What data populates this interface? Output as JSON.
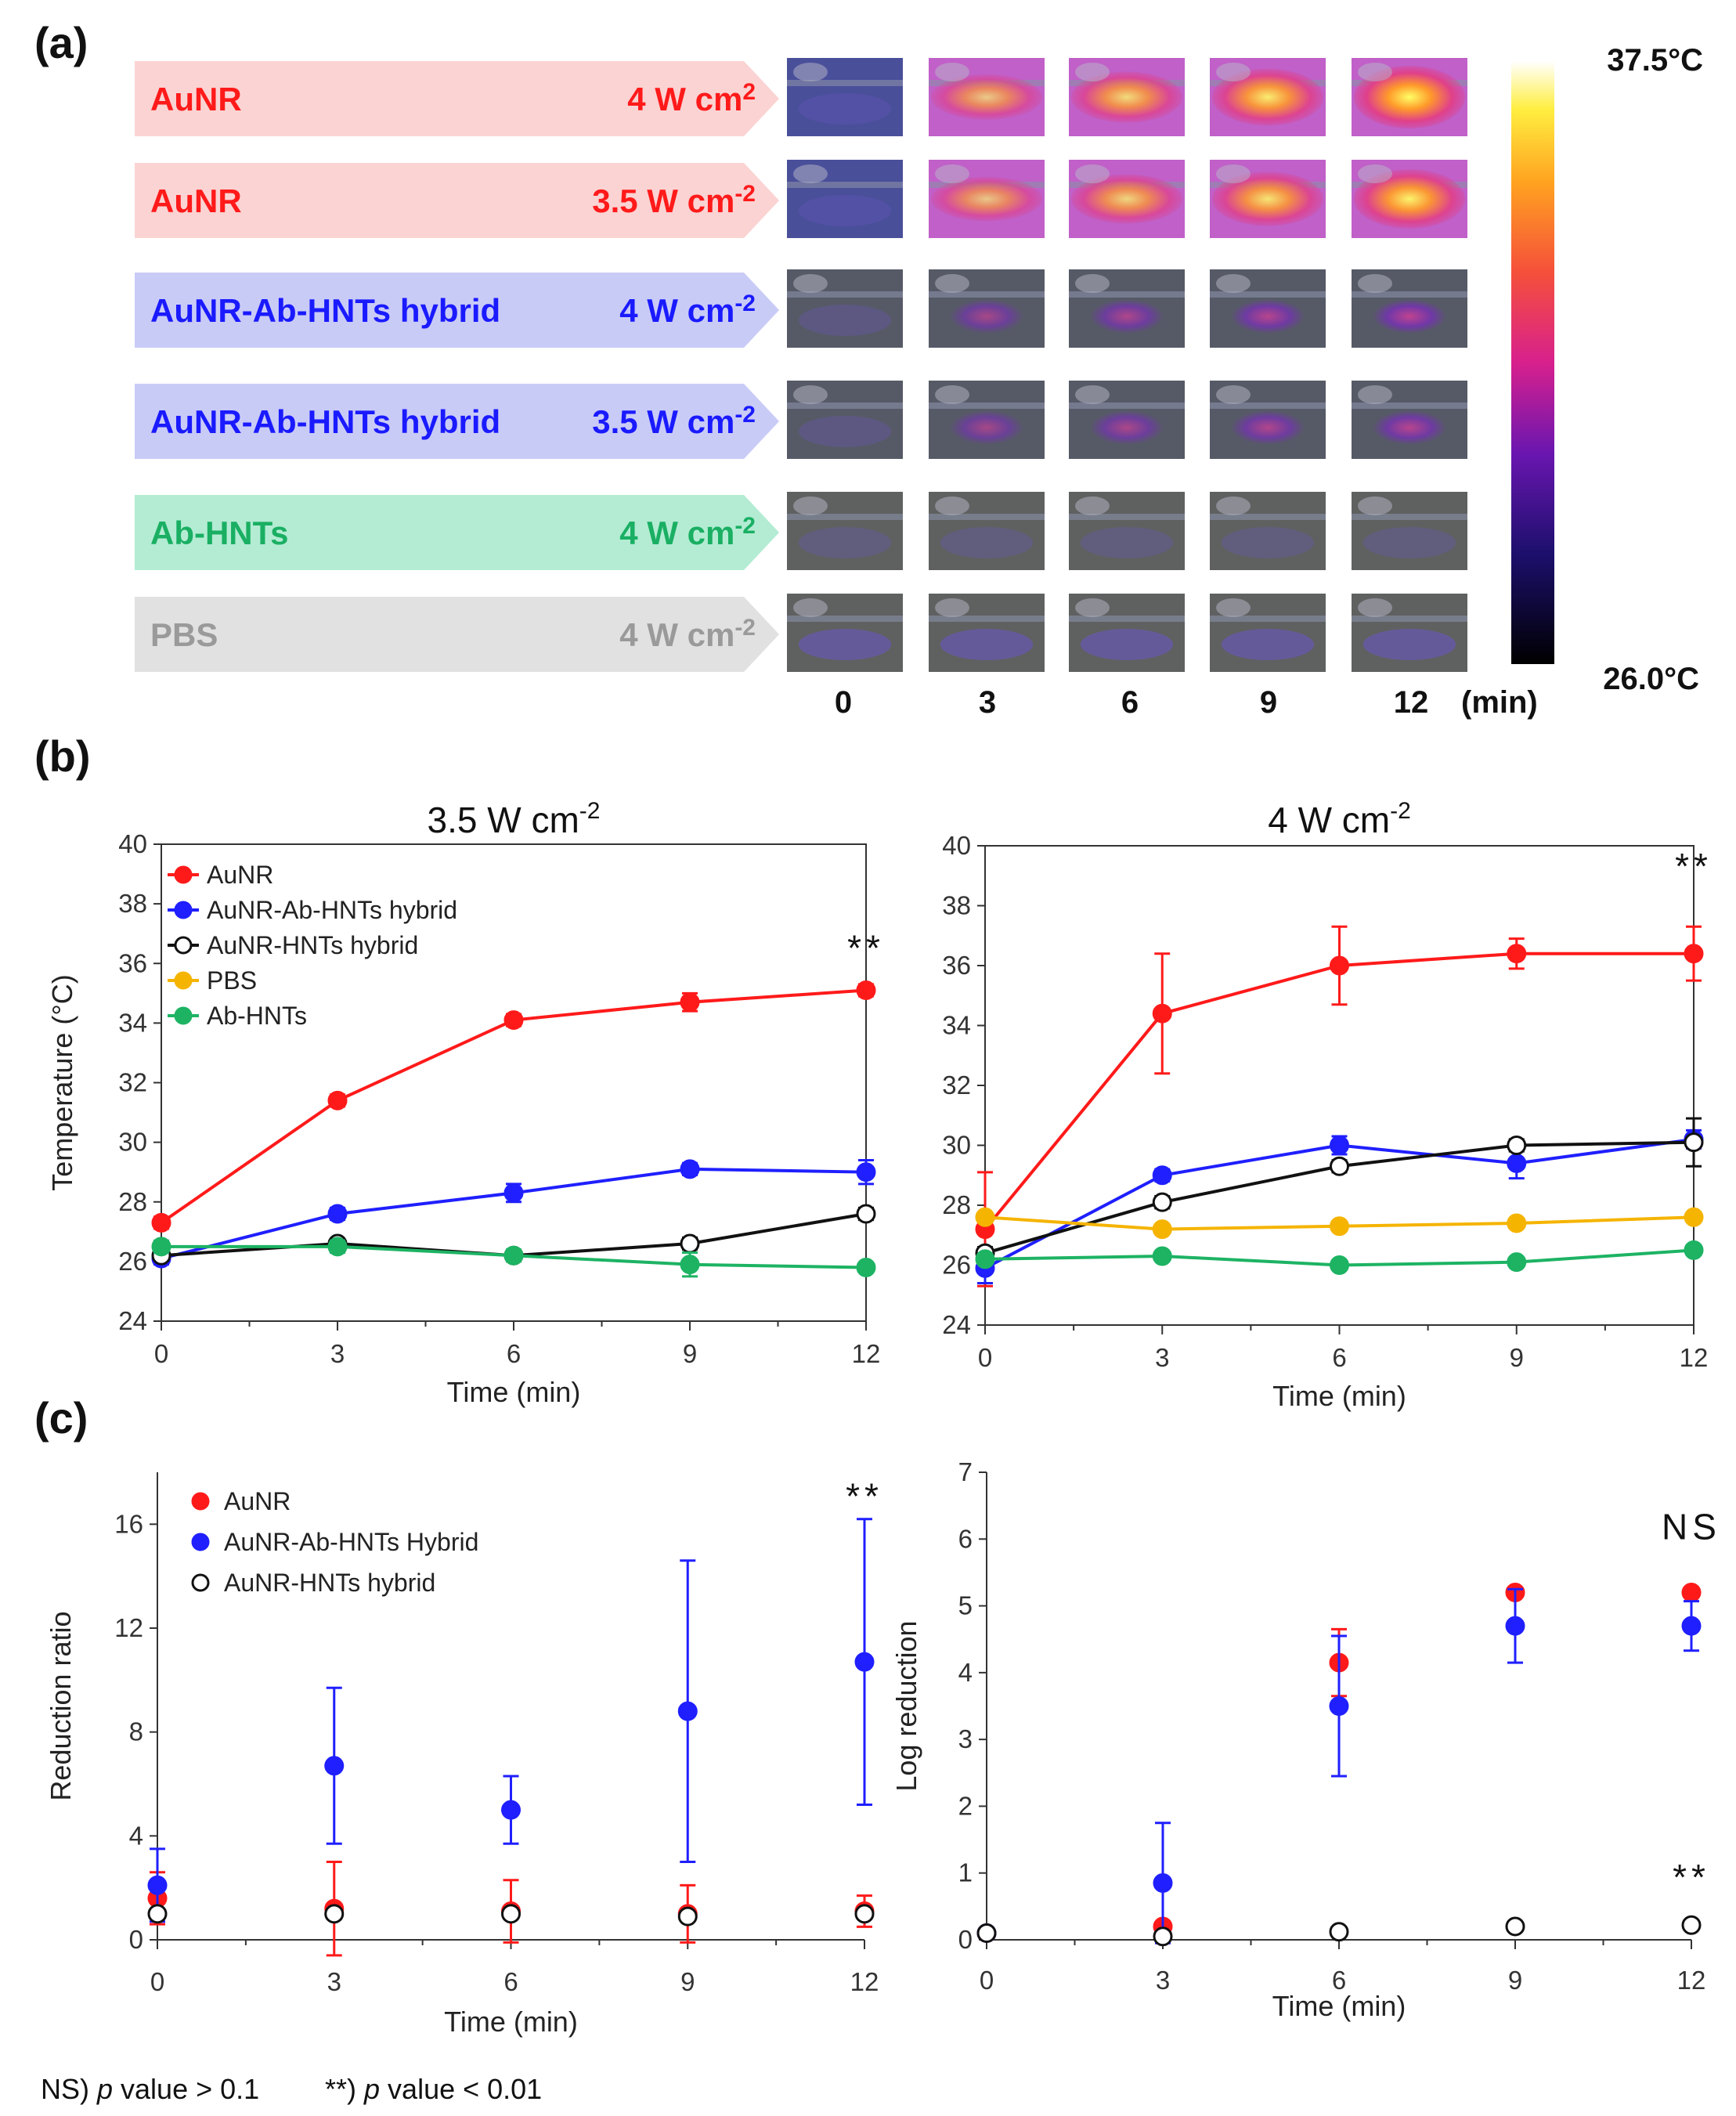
{
  "panel_labels": {
    "a": "(a)",
    "b": "(b)",
    "c": "(c)"
  },
  "panel_a": {
    "rows": [
      {
        "name": "AuNR",
        "power": "4 W cm",
        "sup": "2",
        "color": "#ff1a1a",
        "bg": "#fbd3d3",
        "heat": 1.0
      },
      {
        "name": "AuNR",
        "power": "3.5 W cm",
        "sup": "-2",
        "color": "#ff1a1a",
        "bg": "#fbd3d3",
        "heat": 0.85
      },
      {
        "name": "AuNR-Ab-HNTs hybrid",
        "power": "4 W cm",
        "sup": "-2",
        "color": "#1a1aff",
        "bg": "#c9cbf7",
        "heat": 0.45
      },
      {
        "name": "AuNR-Ab-HNTs hybrid",
        "power": "3.5 W cm",
        "sup": "-2",
        "color": "#1a1aff",
        "bg": "#c9cbf7",
        "heat": 0.35
      },
      {
        "name": "Ab-HNTs",
        "power": "4 W cm",
        "sup": "-2",
        "color": "#1aaf63",
        "bg": "#b3ecd3",
        "heat": 0.1
      },
      {
        "name": "PBS",
        "power": "4 W cm",
        "sup": "-2",
        "color": "#9a9a9a",
        "bg": "#e1e1e1",
        "heat": 0.15
      }
    ],
    "time_labels": [
      "0",
      "3",
      "6",
      "9",
      "12"
    ],
    "time_unit": "(min)",
    "colorbar": {
      "max_label": "37.5°C",
      "min_label": "26.0°C"
    }
  },
  "chart_data": [
    {
      "type": "line",
      "title": "3.5 W cm",
      "title_sup": "-2",
      "xlabel": "Time (min)",
      "ylabel": "Temperature (°C)",
      "xlim": [
        0,
        12
      ],
      "ylim": [
        24,
        40
      ],
      "xticks": [
        0,
        3,
        6,
        9,
        12
      ],
      "yticks": [
        24,
        26,
        28,
        30,
        32,
        34,
        36,
        38,
        40
      ],
      "legend_position": "top-left",
      "annotations": [
        {
          "text": "**",
          "x": 12,
          "y": 36.1
        }
      ],
      "series": [
        {
          "name": "AuNR",
          "color": "#ff1a1a",
          "filled": true,
          "x": [
            0,
            3,
            6,
            9,
            12
          ],
          "y": [
            27.3,
            31.4,
            34.1,
            34.7,
            35.1
          ],
          "err": [
            0.2,
            0.2,
            0.2,
            0.3,
            0.2
          ]
        },
        {
          "name": "AuNR-Ab-HNTs hybrid",
          "color": "#1f1fff",
          "filled": true,
          "x": [
            0,
            3,
            6,
            9,
            12
          ],
          "y": [
            26.1,
            27.6,
            28.3,
            29.1,
            29.0
          ],
          "err": [
            0.2,
            0.2,
            0.3,
            0.2,
            0.4
          ]
        },
        {
          "name": "AuNR-HNTs hybrid",
          "color": "#111111",
          "filled": false,
          "x": [
            0,
            3,
            6,
            9,
            12
          ],
          "y": [
            26.2,
            26.6,
            26.2,
            26.6,
            27.6
          ],
          "err": [
            0.1,
            0.1,
            0.1,
            0.2,
            0.2
          ]
        },
        {
          "name": "PBS",
          "color": "#f5b400",
          "filled": true,
          "x": [],
          "y": [],
          "err": []
        },
        {
          "name": "Ab-HNTs",
          "color": "#1db363",
          "filled": true,
          "x": [
            0,
            3,
            6,
            9,
            12
          ],
          "y": [
            26.5,
            26.5,
            26.2,
            25.9,
            25.8
          ],
          "err": [
            0.2,
            0.2,
            0.2,
            0.4,
            0.1
          ]
        }
      ]
    },
    {
      "type": "line",
      "title": "4 W cm",
      "title_sup": "-2",
      "xlabel": "Time (min)",
      "ylabel": "",
      "xlim": [
        0,
        12
      ],
      "ylim": [
        24,
        40
      ],
      "xticks": [
        0,
        3,
        6,
        9,
        12
      ],
      "yticks": [
        24,
        26,
        28,
        30,
        32,
        34,
        36,
        38,
        40
      ],
      "annotations": [
        {
          "text": "**",
          "x": 12,
          "y": 38.9
        }
      ],
      "series": [
        {
          "name": "AuNR",
          "color": "#ff1a1a",
          "filled": true,
          "x": [
            0,
            3,
            6,
            9,
            12
          ],
          "y": [
            27.2,
            34.4,
            36.0,
            36.4,
            36.4
          ],
          "err": [
            1.9,
            2.0,
            1.3,
            0.5,
            0.9
          ]
        },
        {
          "name": "AuNR-Ab-HNTs hybrid",
          "color": "#1f1fff",
          "filled": true,
          "x": [
            0,
            3,
            6,
            9,
            12
          ],
          "y": [
            25.9,
            29.0,
            30.0,
            29.4,
            30.2
          ],
          "err": [
            0.5,
            0.2,
            0.3,
            0.5,
            0.3
          ]
        },
        {
          "name": "AuNR-HNTs hybrid",
          "color": "#111111",
          "filled": false,
          "x": [
            0,
            3,
            6,
            9,
            12
          ],
          "y": [
            26.4,
            28.1,
            29.3,
            30.0,
            30.1
          ],
          "err": [
            0.2,
            0.2,
            0.2,
            0.2,
            0.8
          ]
        },
        {
          "name": "PBS",
          "color": "#f5b400",
          "filled": true,
          "x": [
            0,
            3,
            6,
            9,
            12
          ],
          "y": [
            27.6,
            27.2,
            27.3,
            27.4,
            27.6
          ],
          "err": [
            0.1,
            0.1,
            0.1,
            0.1,
            0.1
          ]
        },
        {
          "name": "Ab-HNTs",
          "color": "#1db363",
          "filled": true,
          "x": [
            0,
            3,
            6,
            9,
            12
          ],
          "y": [
            26.2,
            26.3,
            26.0,
            26.1,
            26.5
          ],
          "err": [
            0.1,
            0.1,
            0.1,
            0.1,
            0.1
          ]
        }
      ]
    },
    {
      "type": "scatter",
      "title": "",
      "xlabel": "Time (min)",
      "ylabel": "Reduction ratio",
      "xlim": [
        0,
        12
      ],
      "ylim": [
        0,
        18
      ],
      "xticks": [
        0,
        3,
        6,
        9,
        12
      ],
      "yticks": [
        0,
        4,
        8,
        12,
        16
      ],
      "legend_position": "top-left",
      "annotations": [
        {
          "text": "**",
          "x": 12,
          "y": 16.6
        }
      ],
      "series": [
        {
          "name": "AuNR",
          "color": "#ff1a1a",
          "filled": true,
          "x": [
            0,
            3,
            6,
            9,
            12
          ],
          "y": [
            1.6,
            1.2,
            1.1,
            1.0,
            1.1
          ],
          "err": [
            1.0,
            1.8,
            1.2,
            1.1,
            0.6
          ]
        },
        {
          "name": "AuNR-Ab-HNTs Hybrid",
          "color": "#1f1fff",
          "filled": true,
          "x": [
            0,
            3,
            6,
            9,
            12
          ],
          "y": [
            2.1,
            6.7,
            5.0,
            8.8,
            10.7
          ],
          "err": [
            1.4,
            3.0,
            1.3,
            5.8,
            5.5
          ]
        },
        {
          "name": "AuNR-HNTs hybrid",
          "color": "#111111",
          "filled": false,
          "x": [
            0,
            3,
            6,
            9,
            12
          ],
          "y": [
            1.0,
            1.0,
            1.0,
            0.9,
            1.0
          ],
          "err": [
            0,
            0,
            0,
            0,
            0
          ]
        }
      ]
    },
    {
      "type": "scatter",
      "title": "",
      "xlabel": "Time (min)",
      "ylabel": "Log reduction",
      "xlim": [
        0,
        12
      ],
      "ylim": [
        0,
        7
      ],
      "xticks": [
        0,
        3,
        6,
        9,
        12
      ],
      "yticks": [
        0,
        1,
        2,
        3,
        4,
        5,
        6,
        7
      ],
      "annotations": [
        {
          "text": "NS",
          "x": 12,
          "y": 6.0
        },
        {
          "text": "**",
          "x": 12,
          "y": 0.75
        }
      ],
      "series": [
        {
          "name": "AuNR",
          "color": "#ff1a1a",
          "filled": true,
          "x": [
            0,
            3,
            6,
            9,
            12
          ],
          "y": [
            0.1,
            0.2,
            4.15,
            5.2,
            5.2
          ],
          "err": [
            0,
            0,
            0.5,
            0,
            0
          ]
        },
        {
          "name": "AuNR-Ab-HNTs Hybrid",
          "color": "#1f1fff",
          "filled": true,
          "x": [
            0,
            3,
            6,
            9,
            12
          ],
          "y": [
            0.1,
            0.85,
            3.5,
            4.7,
            4.7
          ],
          "err": [
            0,
            0.9,
            1.05,
            0.55,
            0.37
          ]
        },
        {
          "name": "AuNR-HNTs hybrid",
          "color": "#111111",
          "filled": false,
          "x": [
            0,
            3,
            6,
            9,
            12
          ],
          "y": [
            0.1,
            0.05,
            0.12,
            0.2,
            0.22
          ],
          "err": [
            0,
            0,
            0,
            0,
            0
          ]
        }
      ]
    }
  ],
  "footnote": {
    "ns_prefix": "NS) ",
    "p1": "p",
    "ns_rest": " value > 0.1",
    "sig_prefix": "**) ",
    "p2": "p",
    "sig_rest": " value < 0.01"
  }
}
